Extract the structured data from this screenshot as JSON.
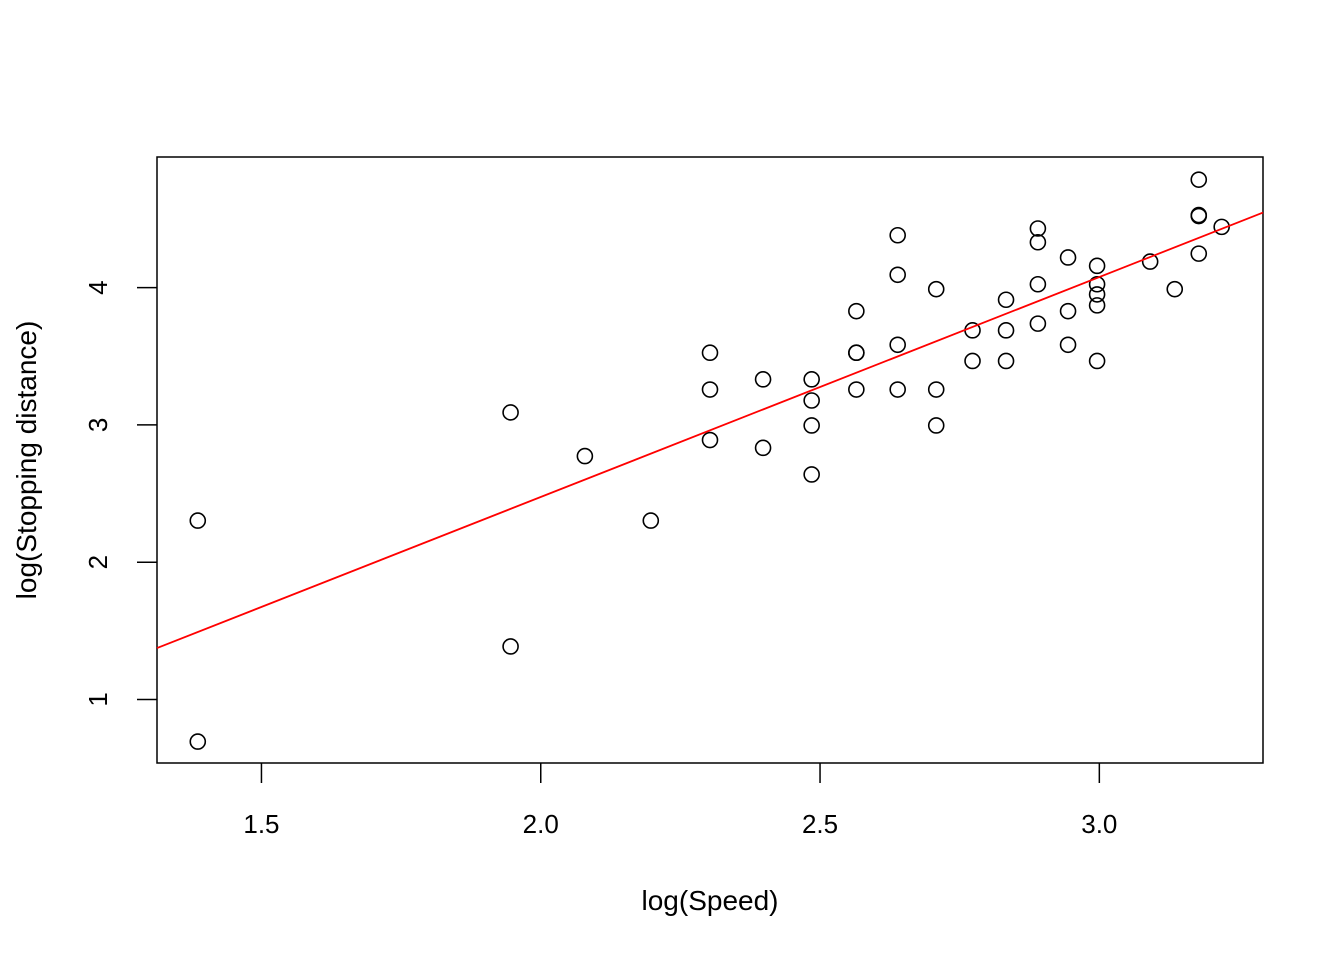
{
  "chart_data": {
    "type": "scatter",
    "title": "",
    "xlabel": "log(Speed)",
    "ylabel": "log(Stopping distance)",
    "xlim": [
      1.313,
      3.293
    ],
    "ylim": [
      0.537,
      4.952
    ],
    "xticks": [
      "1.5",
      "2.0",
      "2.5",
      "3.0"
    ],
    "yticks": [
      "1",
      "2",
      "3",
      "4"
    ],
    "grid": false,
    "legend": null,
    "points_color": "#000000",
    "line_color": "#ff0000",
    "regression_line": {
      "intercept": -0.7297,
      "slope": 1.6024
    },
    "series": [
      {
        "name": "observations",
        "x": [
          1.386,
          1.386,
          1.946,
          1.946,
          2.079,
          2.197,
          2.303,
          2.303,
          2.303,
          2.398,
          2.398,
          2.485,
          2.485,
          2.485,
          2.485,
          2.565,
          2.565,
          2.565,
          2.565,
          2.639,
          2.639,
          2.639,
          2.639,
          2.708,
          2.708,
          2.708,
          2.773,
          2.773,
          2.833,
          2.833,
          2.833,
          2.89,
          2.89,
          2.89,
          2.89,
          2.944,
          2.944,
          2.944,
          2.996,
          2.996,
          2.996,
          2.996,
          2.996,
          3.091,
          3.135,
          3.178,
          3.178,
          3.178,
          3.178,
          3.219
        ],
        "y": [
          0.693,
          2.303,
          1.386,
          3.091,
          2.773,
          2.303,
          2.89,
          3.258,
          3.526,
          2.833,
          3.332,
          2.639,
          2.996,
          3.178,
          3.332,
          3.258,
          3.526,
          3.526,
          3.829,
          3.258,
          3.584,
          4.094,
          4.382,
          2.996,
          3.258,
          3.989,
          3.466,
          3.689,
          3.466,
          3.689,
          3.912,
          3.738,
          4.025,
          4.331,
          4.431,
          3.584,
          3.829,
          4.22,
          3.466,
          3.871,
          3.951,
          4.025,
          4.159,
          4.19,
          3.989,
          4.248,
          4.522,
          4.529,
          4.787,
          4.443
        ]
      }
    ]
  },
  "axes": {
    "x_title": "log(Speed)",
    "y_title": "log(Stopping distance)",
    "x_ticks": [
      {
        "value": 1.5,
        "label": "1.5"
      },
      {
        "value": 2.0,
        "label": "2.0"
      },
      {
        "value": 2.5,
        "label": "2.5"
      },
      {
        "value": 3.0,
        "label": "3.0"
      }
    ],
    "y_ticks": [
      {
        "value": 1,
        "label": "1"
      },
      {
        "value": 2,
        "label": "2"
      },
      {
        "value": 3,
        "label": "3"
      },
      {
        "value": 4,
        "label": "4"
      }
    ]
  }
}
